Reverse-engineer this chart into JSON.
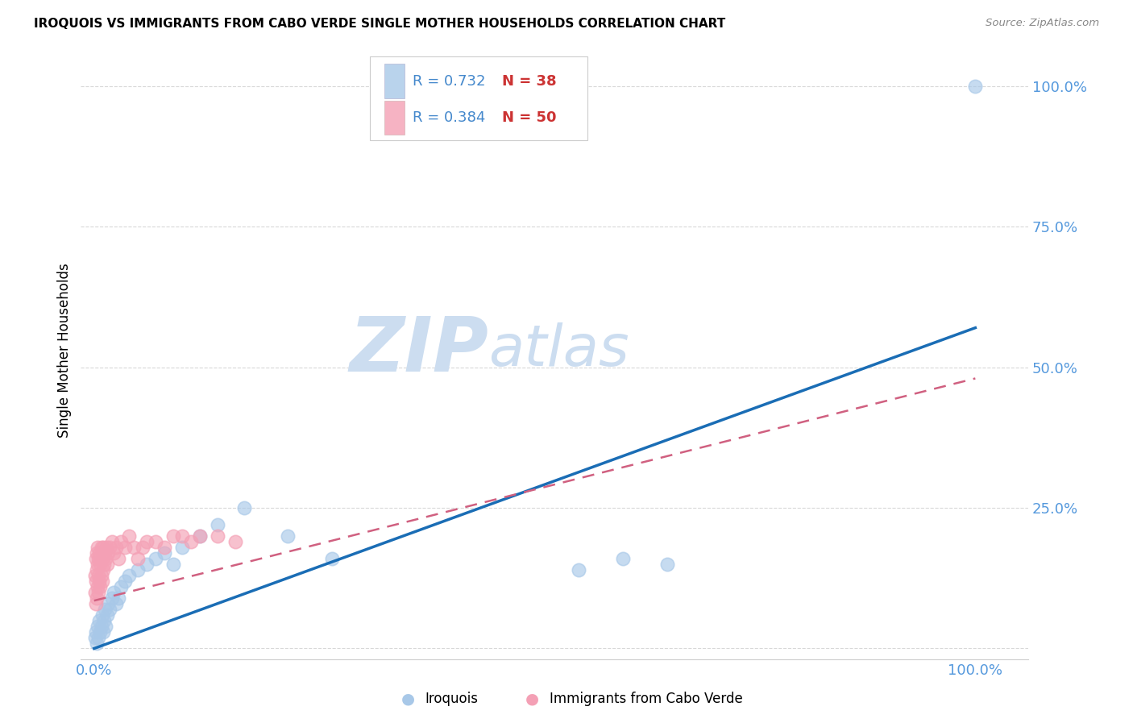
{
  "title": "IROQUOIS VS IMMIGRANTS FROM CABO VERDE SINGLE MOTHER HOUSEHOLDS CORRELATION CHART",
  "source": "Source: ZipAtlas.com",
  "ylabel": "Single Mother Households",
  "watermark_zip": "ZIP",
  "watermark_atlas": "atlas",
  "legend1_r": "0.732",
  "legend1_n": "38",
  "legend2_r": "0.384",
  "legend2_n": "50",
  "blue_color": "#a8c8e8",
  "pink_color": "#f4a0b5",
  "blue_line_color": "#1a6db5",
  "pink_line_color": "#d06080",
  "tick_label_color": "#5599dd",
  "r_text_color": "#4488cc",
  "n_text_color": "#cc3333",
  "iroquois_x": [
    0.001,
    0.002,
    0.003,
    0.004,
    0.005,
    0.006,
    0.007,
    0.008,
    0.009,
    0.01,
    0.011,
    0.012,
    0.013,
    0.015,
    0.016,
    0.018,
    0.02,
    0.022,
    0.025,
    0.028,
    0.03,
    0.035,
    0.04,
    0.05,
    0.06,
    0.07,
    0.08,
    0.09,
    0.1,
    0.12,
    0.14,
    0.17,
    0.22,
    0.27,
    0.55,
    0.6,
    0.65,
    1.0
  ],
  "iroquois_y": [
    0.02,
    0.03,
    0.01,
    0.04,
    0.02,
    0.05,
    0.03,
    0.04,
    0.06,
    0.03,
    0.05,
    0.07,
    0.04,
    0.06,
    0.08,
    0.07,
    0.09,
    0.1,
    0.08,
    0.09,
    0.11,
    0.12,
    0.13,
    0.14,
    0.15,
    0.16,
    0.17,
    0.15,
    0.18,
    0.2,
    0.22,
    0.25,
    0.2,
    0.16,
    0.14,
    0.16,
    0.15,
    1.0
  ],
  "cabo_x": [
    0.001,
    0.001,
    0.002,
    0.002,
    0.002,
    0.003,
    0.003,
    0.003,
    0.004,
    0.004,
    0.004,
    0.005,
    0.005,
    0.005,
    0.006,
    0.006,
    0.007,
    0.007,
    0.008,
    0.008,
    0.009,
    0.009,
    0.01,
    0.01,
    0.011,
    0.012,
    0.013,
    0.014,
    0.015,
    0.016,
    0.018,
    0.02,
    0.022,
    0.025,
    0.028,
    0.03,
    0.035,
    0.04,
    0.045,
    0.05,
    0.055,
    0.06,
    0.07,
    0.08,
    0.09,
    0.1,
    0.11,
    0.12,
    0.14,
    0.16
  ],
  "cabo_y": [
    0.1,
    0.13,
    0.08,
    0.12,
    0.16,
    0.09,
    0.14,
    0.17,
    0.11,
    0.15,
    0.18,
    0.1,
    0.13,
    0.16,
    0.12,
    0.17,
    0.11,
    0.15,
    0.13,
    0.18,
    0.12,
    0.16,
    0.14,
    0.18,
    0.15,
    0.17,
    0.16,
    0.18,
    0.15,
    0.17,
    0.18,
    0.19,
    0.17,
    0.18,
    0.16,
    0.19,
    0.18,
    0.2,
    0.18,
    0.16,
    0.18,
    0.19,
    0.19,
    0.18,
    0.2,
    0.2,
    0.19,
    0.2,
    0.2,
    0.19
  ],
  "blue_line_x0": 0.0,
  "blue_line_y0": 0.0,
  "blue_line_x1": 1.0,
  "blue_line_y1": 0.57,
  "pink_line_x0": 0.0,
  "pink_line_y0": 0.085,
  "pink_line_x1": 1.0,
  "pink_line_y1": 0.48,
  "xlim": [
    -0.015,
    1.06
  ],
  "ylim": [
    -0.02,
    1.08
  ],
  "yticks": [
    0.0,
    0.25,
    0.5,
    0.75,
    1.0
  ],
  "ytick_labels": [
    "",
    "25.0%",
    "50.0%",
    "75.0%",
    "100.0%"
  ],
  "xticks": [
    0.0,
    0.25,
    0.5,
    0.75,
    1.0
  ],
  "xtick_labels": [
    "0.0%",
    "",
    "",
    "",
    "100.0%"
  ],
  "background_color": "#ffffff",
  "grid_color": "#d8d8d8"
}
